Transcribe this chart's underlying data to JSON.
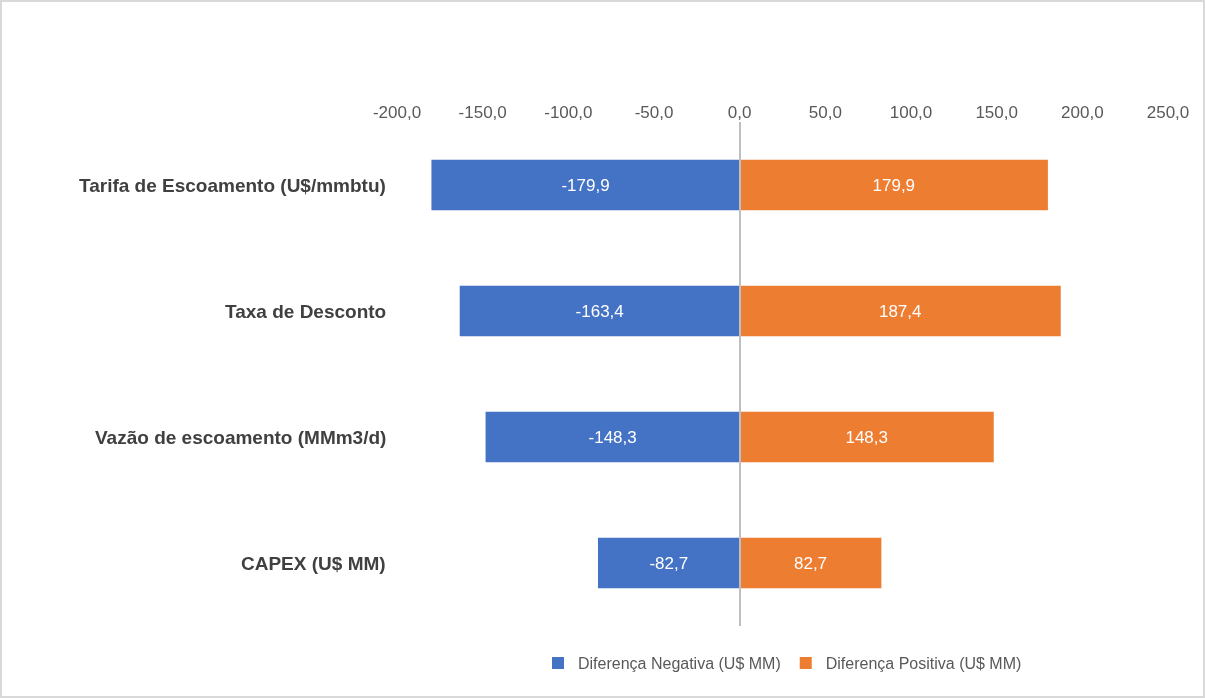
{
  "chart_data": {
    "type": "bar",
    "orientation": "horizontal",
    "categories": [
      "Tarifa de Escoamento (U$/mmbtu)",
      "Taxa de Desconto",
      "Vazão de escoamento (MMm3/d)",
      "CAPEX (U$ MM)"
    ],
    "series": [
      {
        "name": "Diferença Negativa (U$ MM)",
        "color": "#4472c4",
        "values": [
          -179.9,
          -163.4,
          -148.3,
          -82.7
        ],
        "value_labels": [
          "-179,9",
          "-163,4",
          "-148,3",
          "-82,7"
        ]
      },
      {
        "name": "Diferença Positiva (U$ MM)",
        "color": "#ed7d31",
        "values": [
          179.9,
          187.4,
          148.3,
          82.7
        ],
        "value_labels": [
          "179,9",
          "187,4",
          "148,3",
          "82,7"
        ]
      }
    ],
    "xlim": [
      -200,
      250
    ],
    "xticks": [
      {
        "value": -200,
        "label": "-200,0"
      },
      {
        "value": -150,
        "label": "-150,0"
      },
      {
        "value": -100,
        "label": "-100,0"
      },
      {
        "value": -50,
        "label": "-50,0"
      },
      {
        "value": 0,
        "label": "0,0"
      },
      {
        "value": 50,
        "label": "50,0"
      },
      {
        "value": 100,
        "label": "100,0"
      },
      {
        "value": 150,
        "label": "150,0"
      },
      {
        "value": 200,
        "label": "200,0"
      },
      {
        "value": 250,
        "label": "250,0"
      }
    ],
    "stacked": true,
    "legend": "bottom"
  }
}
